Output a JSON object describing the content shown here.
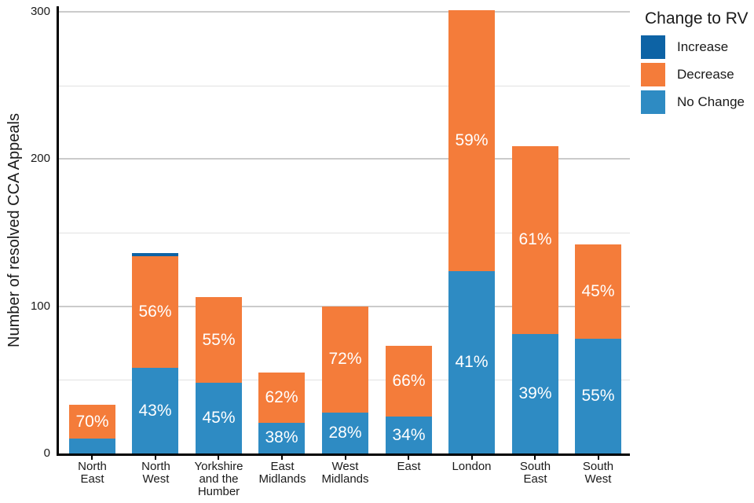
{
  "chart_data": {
    "type": "bar",
    "stacked": true,
    "title": "",
    "xlabel": "",
    "ylabel": "Number of resolved CCA Appeals",
    "ylim": [
      0,
      300
    ],
    "yticks": [
      0,
      100,
      200,
      300
    ],
    "minor_gridlines": [
      50,
      150,
      250
    ],
    "grid": true,
    "legend_title": "Change to RV",
    "legend_position": "right",
    "categories": [
      "North East",
      "North West",
      "Yorkshire and the Humber",
      "East Midlands",
      "West Midlands",
      "East",
      "London",
      "South East",
      "South West"
    ],
    "category_label_lines": [
      [
        "North",
        "East"
      ],
      [
        "North",
        "West"
      ],
      [
        "Yorkshire",
        "and the",
        "Humber"
      ],
      [
        "East",
        "Midlands"
      ],
      [
        "West",
        "Midlands"
      ],
      [
        "East"
      ],
      [
        "London"
      ],
      [
        "South",
        "East"
      ],
      [
        "South",
        "West"
      ]
    ],
    "series": [
      {
        "name": "Increase",
        "color": "#0d63a5",
        "values": [
          0,
          2,
          0,
          0,
          0,
          0,
          0,
          0,
          0
        ],
        "labels": [
          "",
          "",
          "",
          "",
          "",
          "",
          "",
          "",
          ""
        ]
      },
      {
        "name": "Decrease",
        "color": "#f47c3a",
        "values": [
          23,
          76,
          58,
          34,
          72,
          48,
          177,
          128,
          64
        ],
        "labels": [
          "70%",
          "56%",
          "55%",
          "62%",
          "72%",
          "66%",
          "59%",
          "61%",
          "45%"
        ]
      },
      {
        "name": "No Change",
        "color": "#2e8bc3",
        "values": [
          10,
          58,
          48,
          21,
          28,
          25,
          124,
          81,
          78
        ],
        "labels": [
          "",
          "43%",
          "45%",
          "38%",
          "28%",
          "34%",
          "41%",
          "39%",
          "55%"
        ]
      }
    ],
    "totals": [
      33,
      136,
      106,
      55,
      100,
      73,
      301,
      209,
      142
    ]
  }
}
